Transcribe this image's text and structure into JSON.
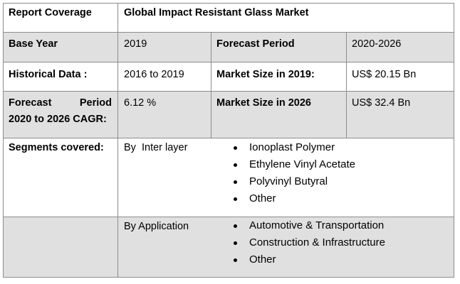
{
  "header": {
    "label": "Report Coverage",
    "title": "Global Impact Resistant Glass Market"
  },
  "rows": {
    "base_year": {
      "label": "Base Year",
      "value": "2019",
      "label2": "Forecast Period",
      "value2": "2020-2026"
    },
    "historical": {
      "label": "Historical Data :",
      "value": "2016 to 2019",
      "label2": "Market Size in 2019:",
      "value2": "US$ 20.15 Bn"
    },
    "forecast": {
      "label_line1_a": "Forecast",
      "label_line1_b": "Period",
      "label_line2": "2020 to 2026 CAGR:",
      "value": "6.12 %",
      "label2": "Market Size in 2026",
      "value2": "US$ 32.4 Bn"
    }
  },
  "segments": {
    "label": "Segments covered:",
    "inter_layer": {
      "label": "By  Inter layer",
      "items": [
        "Ionoplast Polymer",
        "Ethylene Vinyl Acetate",
        "Polyvinyl Butyral",
        "Other"
      ]
    },
    "application": {
      "label": "By Application",
      "items": [
        "Automotive & Transportation",
        "Construction & Infrastructure",
        "Other"
      ]
    }
  }
}
